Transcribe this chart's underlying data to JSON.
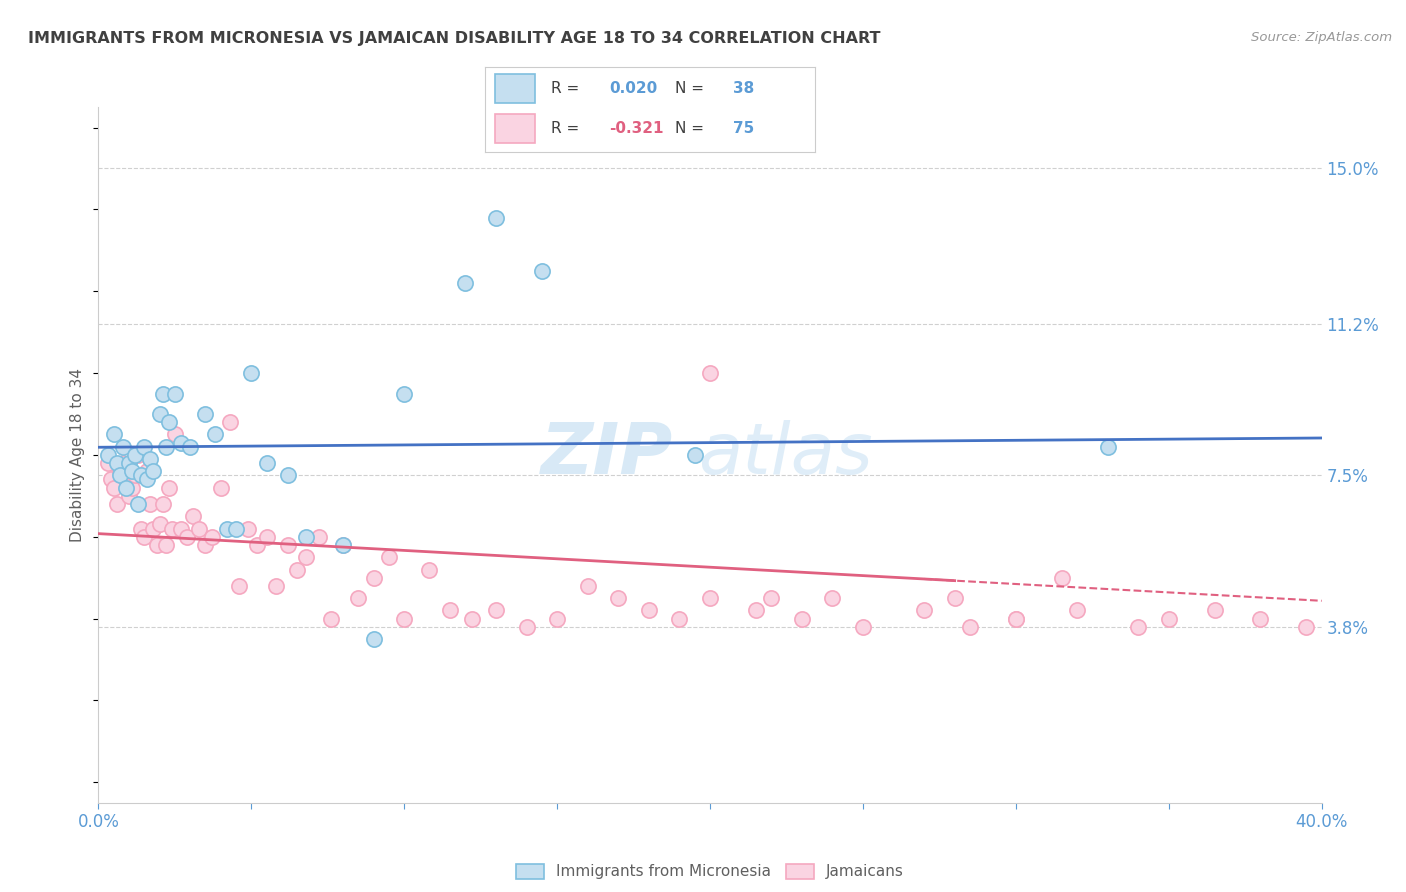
{
  "title": "IMMIGRANTS FROM MICRONESIA VS JAMAICAN DISABILITY AGE 18 TO 34 CORRELATION CHART",
  "source": "Source: ZipAtlas.com",
  "ylabel": "Disability Age 18 to 34",
  "xlim": [
    0.0,
    0.4
  ],
  "ylim": [
    -0.005,
    0.165
  ],
  "yticks": [
    0.038,
    0.075,
    0.112,
    0.15
  ],
  "ytick_labels": [
    "3.8%",
    "7.5%",
    "11.2%",
    "15.0%"
  ],
  "xticks": [
    0.0,
    0.05,
    0.1,
    0.15,
    0.2,
    0.25,
    0.3,
    0.35,
    0.4
  ],
  "xtick_labels_show": [
    "0.0%",
    "40.0%"
  ],
  "blue_color": "#7fbfdf",
  "blue_fill": "#c5dff0",
  "pink_color": "#f5a8c0",
  "pink_fill": "#fad4e2",
  "line_blue": "#4472c4",
  "line_pink": "#e06080",
  "title_color": "#404040",
  "axis_label_color": "#606060",
  "tick_color": "#5b9bd5",
  "grid_color": "#d0d0d0",
  "watermark_text": "ZIP",
  "watermark_text2": "atlas",
  "blue_R": "0.020",
  "blue_N": "38",
  "pink_R": "-0.321",
  "pink_N": "75",
  "blue_points_x": [
    0.003,
    0.005,
    0.006,
    0.007,
    0.008,
    0.009,
    0.01,
    0.011,
    0.012,
    0.013,
    0.014,
    0.015,
    0.016,
    0.017,
    0.018,
    0.02,
    0.021,
    0.022,
    0.023,
    0.025,
    0.027,
    0.03,
    0.035,
    0.038,
    0.042,
    0.045,
    0.05,
    0.055,
    0.062,
    0.068,
    0.08,
    0.09,
    0.1,
    0.12,
    0.13,
    0.145,
    0.195,
    0.33
  ],
  "blue_points_y": [
    0.08,
    0.085,
    0.078,
    0.075,
    0.082,
    0.072,
    0.078,
    0.076,
    0.08,
    0.068,
    0.075,
    0.082,
    0.074,
    0.079,
    0.076,
    0.09,
    0.095,
    0.082,
    0.088,
    0.095,
    0.083,
    0.082,
    0.09,
    0.085,
    0.062,
    0.062,
    0.1,
    0.078,
    0.075,
    0.06,
    0.058,
    0.035,
    0.095,
    0.122,
    0.138,
    0.125,
    0.08,
    0.082
  ],
  "pink_points_x": [
    0.003,
    0.004,
    0.005,
    0.006,
    0.007,
    0.008,
    0.009,
    0.01,
    0.011,
    0.012,
    0.013,
    0.014,
    0.015,
    0.016,
    0.017,
    0.018,
    0.019,
    0.02,
    0.021,
    0.022,
    0.023,
    0.024,
    0.025,
    0.027,
    0.029,
    0.031,
    0.033,
    0.035,
    0.037,
    0.04,
    0.043,
    0.046,
    0.049,
    0.052,
    0.055,
    0.058,
    0.062,
    0.065,
    0.068,
    0.072,
    0.076,
    0.08,
    0.085,
    0.09,
    0.095,
    0.1,
    0.108,
    0.115,
    0.122,
    0.13,
    0.14,
    0.15,
    0.16,
    0.17,
    0.18,
    0.19,
    0.2,
    0.215,
    0.23,
    0.25,
    0.27,
    0.285,
    0.3,
    0.32,
    0.34,
    0.35,
    0.365,
    0.38,
    0.395,
    0.2,
    0.22,
    0.24,
    0.3,
    0.315,
    0.28
  ],
  "pink_points_y": [
    0.078,
    0.074,
    0.072,
    0.068,
    0.076,
    0.078,
    0.074,
    0.07,
    0.072,
    0.075,
    0.08,
    0.062,
    0.06,
    0.076,
    0.068,
    0.062,
    0.058,
    0.063,
    0.068,
    0.058,
    0.072,
    0.062,
    0.085,
    0.062,
    0.06,
    0.065,
    0.062,
    0.058,
    0.06,
    0.072,
    0.088,
    0.048,
    0.062,
    0.058,
    0.06,
    0.048,
    0.058,
    0.052,
    0.055,
    0.06,
    0.04,
    0.058,
    0.045,
    0.05,
    0.055,
    0.04,
    0.052,
    0.042,
    0.04,
    0.042,
    0.038,
    0.04,
    0.048,
    0.045,
    0.042,
    0.04,
    0.045,
    0.042,
    0.04,
    0.038,
    0.042,
    0.038,
    0.04,
    0.042,
    0.038,
    0.04,
    0.042,
    0.04,
    0.038,
    0.1,
    0.045,
    0.045,
    0.04,
    0.05,
    0.045
  ]
}
